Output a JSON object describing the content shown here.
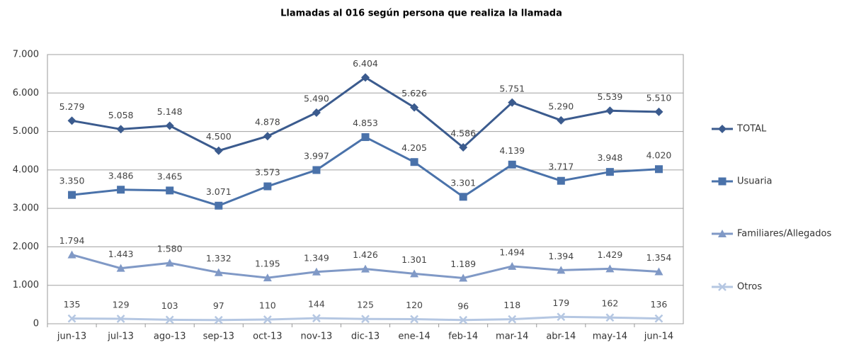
{
  "chart_data": {
    "type": "line",
    "title": "Llamadas al 016 según persona que realiza la llamada",
    "categories": [
      "jun-13",
      "jul-13",
      "ago-13",
      "sep-13",
      "oct-13",
      "nov-13",
      "dic-13",
      "ene-14",
      "feb-14",
      "mar-14",
      "abr-14",
      "may-14",
      "jun-14"
    ],
    "series": [
      {
        "name": "TOTAL",
        "color": "#3b5b8e",
        "marker": "diamond",
        "values": [
          5279,
          5058,
          5148,
          4500,
          4878,
          5490,
          6404,
          5626,
          4586,
          5751,
          5290,
          5539,
          5510
        ],
        "value_labels": [
          "5.279",
          "5.058",
          "5.148",
          "4.500",
          "4.878",
          "5.490",
          "6.404",
          "5.626",
          "4.586",
          "5.751",
          "5.290",
          "5.539",
          "5.510"
        ]
      },
      {
        "name": "Usuaria",
        "color": "#4a72aa",
        "marker": "square",
        "values": [
          3350,
          3486,
          3465,
          3071,
          3573,
          3997,
          4853,
          4205,
          3301,
          4139,
          3717,
          3948,
          4020
        ],
        "value_labels": [
          "3.350",
          "3.486",
          "3.465",
          "3.071",
          "3.573",
          "3.997",
          "4.853",
          "4.205",
          "3.301",
          "4.139",
          "3.717",
          "3.948",
          "4.020"
        ]
      },
      {
        "name": "Familiares/Allegados",
        "color": "#8099c6",
        "marker": "triangle",
        "values": [
          1794,
          1443,
          1580,
          1332,
          1195,
          1349,
          1426,
          1301,
          1189,
          1494,
          1394,
          1429,
          1354
        ],
        "value_labels": [
          "1.794",
          "1.443",
          "1.580",
          "1.332",
          "1.195",
          "1.349",
          "1.426",
          "1.301",
          "1.189",
          "1.494",
          "1.394",
          "1.429",
          "1.354"
        ]
      },
      {
        "name": "Otros",
        "color": "#b5c7e2",
        "marker": "x",
        "values": [
          135,
          129,
          103,
          97,
          110,
          144,
          125,
          120,
          96,
          118,
          179,
          162,
          136
        ]
      }
    ],
    "ylim": [
      0,
      7000
    ],
    "yticks": [
      0,
      {
        "value": 1000,
        "label": "1.000"
      },
      {
        "value": 2000,
        "label": "2.000"
      },
      {
        "value": 3000,
        "label": "3.000"
      },
      {
        "value": 4000,
        "label": "4.000"
      },
      {
        "value": 5000,
        "label": "5.000"
      },
      {
        "value": 6000,
        "label": "6.000"
      },
      {
        "value": 7000,
        "label": "7.000"
      }
    ],
    "grid": true,
    "legend": "right"
  }
}
